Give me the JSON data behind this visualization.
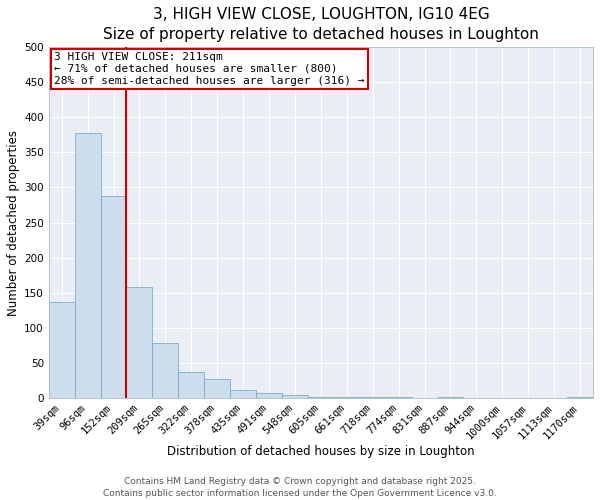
{
  "title": "3, HIGH VIEW CLOSE, LOUGHTON, IG10 4EG",
  "subtitle": "Size of property relative to detached houses in Loughton",
  "xlabel": "Distribution of detached houses by size in Loughton",
  "ylabel": "Number of detached properties",
  "bar_labels": [
    "39sqm",
    "96sqm",
    "152sqm",
    "209sqm",
    "265sqm",
    "322sqm",
    "378sqm",
    "435sqm",
    "491sqm",
    "548sqm",
    "605sqm",
    "661sqm",
    "718sqm",
    "774sqm",
    "831sqm",
    "887sqm",
    "944sqm",
    "1000sqm",
    "1057sqm",
    "1113sqm",
    "1170sqm"
  ],
  "bar_values": [
    137,
    378,
    288,
    158,
    78,
    37,
    27,
    12,
    7,
    5,
    2,
    2,
    1,
    1,
    0,
    1,
    0,
    0,
    0,
    0,
    1
  ],
  "bar_color": "#ccdded",
  "bar_edge_color": "#7aadcc",
  "vline_color": "#cc0000",
  "annotation_line1": "3 HIGH VIEW CLOSE: 211sqm",
  "annotation_line2": "← 71% of detached houses are smaller (800)",
  "annotation_line3": "28% of semi-detached houses are larger (316) →",
  "annotation_box_color": "#cc0000",
  "ylim": [
    0,
    500
  ],
  "yticks": [
    0,
    50,
    100,
    150,
    200,
    250,
    300,
    350,
    400,
    450,
    500
  ],
  "footer1": "Contains HM Land Registry data © Crown copyright and database right 2025.",
  "footer2": "Contains public sector information licensed under the Open Government Licence v3.0.",
  "background_color": "#ffffff",
  "plot_bg_color": "#e8eef4",
  "grid_color": "#ffffff",
  "title_fontsize": 11,
  "axis_label_fontsize": 8.5,
  "tick_fontsize": 7.5,
  "annotation_fontsize": 8,
  "footer_fontsize": 6.5
}
